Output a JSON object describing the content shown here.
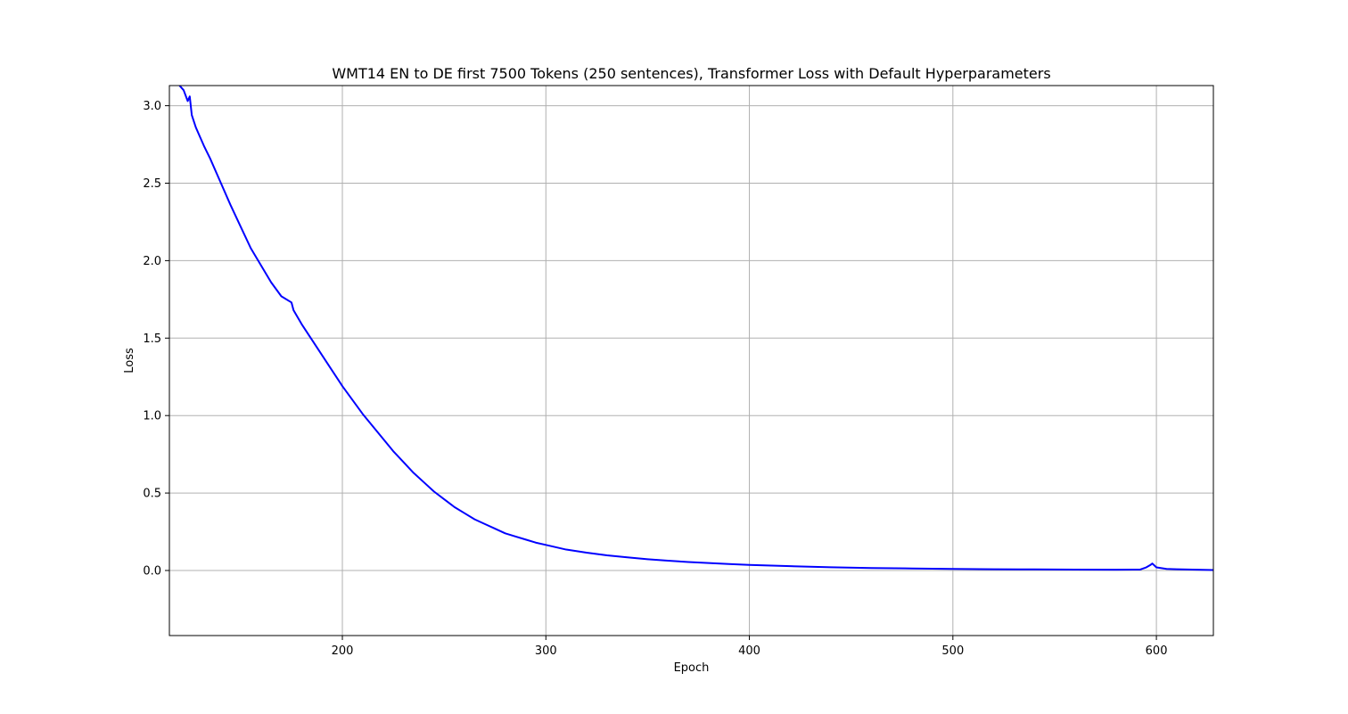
{
  "chart_data": {
    "type": "line",
    "title": "WMT14 EN to DE first 7500 Tokens (250 sentences), Transformer Loss with Default Hyperparameters",
    "xlabel": "Epoch",
    "ylabel": "Loss",
    "xlim": [
      115,
      628
    ],
    "ylim": [
      -0.42,
      3.13
    ],
    "xticks": [
      200,
      300,
      400,
      500,
      600
    ],
    "yticks": [
      0.0,
      0.5,
      1.0,
      1.5,
      2.0,
      2.5,
      3.0
    ],
    "xtick_labels": [
      "200",
      "300",
      "400",
      "500",
      "600"
    ],
    "ytick_labels": [
      "0.0",
      "0.5",
      "1.0",
      "1.5",
      "2.0",
      "2.5",
      "3.0"
    ],
    "grid": true,
    "series": [
      {
        "color": "#0000ff",
        "x": [
          120,
          122,
          124,
          125,
          126,
          128,
          130,
          132,
          135,
          140,
          145,
          150,
          155,
          160,
          165,
          170,
          175,
          176,
          180,
          185,
          190,
          195,
          200,
          205,
          210,
          215,
          220,
          225,
          230,
          235,
          240,
          245,
          250,
          255,
          260,
          265,
          270,
          275,
          280,
          285,
          290,
          295,
          300,
          305,
          310,
          320,
          330,
          340,
          350,
          360,
          370,
          380,
          390,
          400,
          420,
          440,
          460,
          480,
          500,
          520,
          540,
          560,
          580,
          592,
          595,
          597,
          598,
          600,
          605,
          610,
          628
        ],
        "y": [
          3.13,
          3.1,
          3.03,
          3.06,
          2.94,
          2.86,
          2.8,
          2.74,
          2.66,
          2.51,
          2.36,
          2.22,
          2.08,
          1.97,
          1.86,
          1.77,
          1.73,
          1.68,
          1.59,
          1.49,
          1.39,
          1.29,
          1.19,
          1.1,
          1.01,
          0.93,
          0.85,
          0.77,
          0.7,
          0.63,
          0.57,
          0.51,
          0.46,
          0.41,
          0.37,
          0.33,
          0.3,
          0.27,
          0.24,
          0.22,
          0.2,
          0.18,
          0.165,
          0.15,
          0.135,
          0.115,
          0.098,
          0.085,
          0.073,
          0.063,
          0.055,
          0.048,
          0.042,
          0.036,
          0.028,
          0.021,
          0.016,
          0.013,
          0.01,
          0.008,
          0.007,
          0.006,
          0.005,
          0.006,
          0.02,
          0.035,
          0.045,
          0.02,
          0.01,
          0.008,
          0.003
        ]
      }
    ]
  }
}
